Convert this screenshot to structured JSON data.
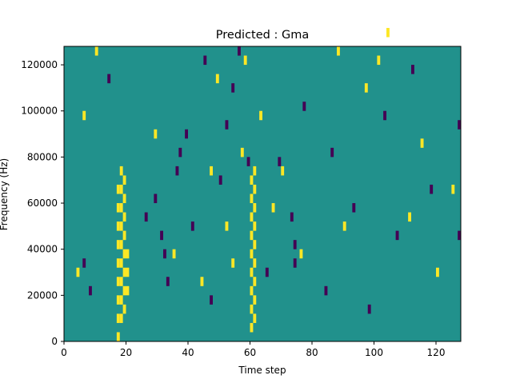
{
  "chart_data": {
    "type": "heatmap",
    "title": "Predicted : Gma",
    "xlabel": "Time step",
    "ylabel": "Frequency (Hz)",
    "xlim": [
      0,
      128
    ],
    "ylim": [
      0,
      128000
    ],
    "xticks": [
      0,
      20,
      40,
      60,
      80,
      100,
      120
    ],
    "yticks": [
      0,
      20000,
      40000,
      60000,
      80000,
      100000,
      120000
    ],
    "xtick_labels": [
      "0",
      "20",
      "40",
      "60",
      "80",
      "100",
      "120"
    ],
    "ytick_labels": [
      "0",
      "20000",
      "40000",
      "60000",
      "80000",
      "100000",
      "120000"
    ],
    "grid": "off",
    "legend": "none",
    "colors": {
      "background": "#21918c",
      "high": "#fde725",
      "low": "#440154"
    },
    "cell": {
      "width_steps": 1,
      "height_hz": 4000
    },
    "high_cells": [
      [
        17,
        0
      ],
      [
        17,
        2
      ],
      [
        17,
        4
      ],
      [
        17,
        6
      ],
      [
        17,
        8
      ],
      [
        17,
        10
      ],
      [
        17,
        12
      ],
      [
        17,
        14
      ],
      [
        17,
        16
      ],
      [
        18,
        2
      ],
      [
        18,
        4
      ],
      [
        18,
        6
      ],
      [
        18,
        8
      ],
      [
        18,
        10
      ],
      [
        18,
        12
      ],
      [
        18,
        14
      ],
      [
        18,
        16
      ],
      [
        18,
        18
      ],
      [
        19,
        3
      ],
      [
        19,
        5
      ],
      [
        19,
        7
      ],
      [
        19,
        9
      ],
      [
        19,
        11
      ],
      [
        19,
        13
      ],
      [
        19,
        15
      ],
      [
        19,
        17
      ],
      [
        20,
        5
      ],
      [
        20,
        7
      ],
      [
        20,
        9
      ],
      [
        60,
        1
      ],
      [
        60,
        3
      ],
      [
        60,
        5
      ],
      [
        60,
        7
      ],
      [
        60,
        9
      ],
      [
        60,
        11
      ],
      [
        60,
        13
      ],
      [
        60,
        15
      ],
      [
        60,
        17
      ],
      [
        61,
        2
      ],
      [
        61,
        4
      ],
      [
        61,
        6
      ],
      [
        61,
        8
      ],
      [
        61,
        10
      ],
      [
        61,
        12
      ],
      [
        61,
        14
      ],
      [
        61,
        16
      ],
      [
        61,
        18
      ],
      [
        54,
        8
      ],
      [
        57,
        20
      ],
      [
        58,
        30
      ],
      [
        47,
        18
      ],
      [
        44,
        6
      ],
      [
        52,
        12
      ],
      [
        4,
        7
      ],
      [
        6,
        24
      ],
      [
        10,
        31
      ],
      [
        29,
        22
      ],
      [
        35,
        9
      ],
      [
        101,
        30
      ],
      [
        104,
        33
      ],
      [
        111,
        13
      ],
      [
        115,
        21
      ],
      [
        120,
        7
      ],
      [
        125,
        16
      ],
      [
        90,
        12
      ],
      [
        97,
        27
      ],
      [
        88,
        31
      ],
      [
        76,
        9
      ],
      [
        70,
        18
      ],
      [
        67,
        14
      ],
      [
        63,
        24
      ],
      [
        49,
        28
      ]
    ],
    "low_cells": [
      [
        6,
        8
      ],
      [
        8,
        5
      ],
      [
        14,
        28
      ],
      [
        26,
        13
      ],
      [
        32,
        9
      ],
      [
        37,
        20
      ],
      [
        41,
        12
      ],
      [
        45,
        30
      ],
      [
        50,
        17
      ],
      [
        54,
        27
      ],
      [
        65,
        7
      ],
      [
        69,
        19
      ],
      [
        73,
        13
      ],
      [
        74,
        8
      ],
      [
        74,
        10
      ],
      [
        77,
        25
      ],
      [
        84,
        5
      ],
      [
        86,
        20
      ],
      [
        93,
        14
      ],
      [
        98,
        3
      ],
      [
        103,
        24
      ],
      [
        107,
        11
      ],
      [
        112,
        29
      ],
      [
        118,
        16
      ],
      [
        127,
        11
      ],
      [
        127,
        23
      ],
      [
        29,
        15
      ],
      [
        31,
        11
      ],
      [
        33,
        6
      ],
      [
        36,
        18
      ],
      [
        39,
        22
      ],
      [
        47,
        4
      ],
      [
        52,
        23
      ],
      [
        56,
        31
      ],
      [
        59,
        19
      ]
    ]
  }
}
